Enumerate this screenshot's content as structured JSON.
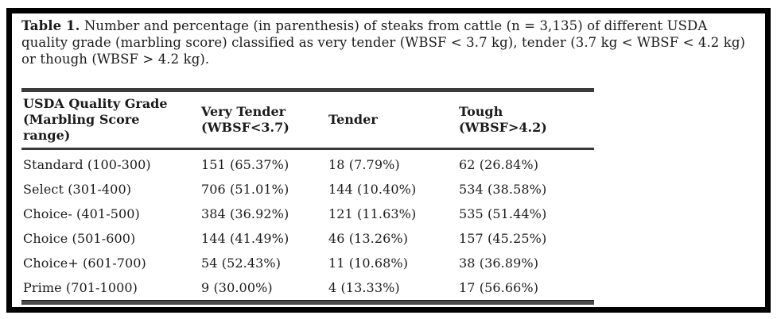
{
  "caption": {
    "label": "Table 1.",
    "line1_rest": "Number and percentage (in parenthesis) of steaks from cattle (n = 3,135) of different USDA",
    "line2": "quality grade (marbling score) classified as very tender (WBSF < 3.7 kg), tender (3.7 kg < WBSF < 4.2 kg)",
    "line3": "or though (WBSF > 4.2 kg)."
  },
  "table": {
    "columns": [
      {
        "lines": [
          "USDA Quality Grade",
          "(Marbling Score",
          "range)"
        ]
      },
      {
        "lines": [
          "Very Tender",
          "(WBSF<3.7)"
        ]
      },
      {
        "lines": [
          "Tender"
        ]
      },
      {
        "lines": [
          "Tough",
          "(WBSF>4.2)"
        ]
      }
    ],
    "rows": [
      {
        "grade": "Standard (100-300)",
        "very_tender": "151 (65.37%)",
        "tender": "18 (7.79%)",
        "tough": "62 (26.84%)"
      },
      {
        "grade": "Select (301-400)",
        "very_tender": "706 (51.01%)",
        "tender": "144 (10.40%)",
        "tough": "534 (38.58%)"
      },
      {
        "grade": "Choice- (401-500)",
        "very_tender": "384 (36.92%)",
        "tender": "121 (11.63%)",
        "tough": "535 (51.44%)"
      },
      {
        "grade": "Choice (501-600)",
        "very_tender": "144 (41.49%)",
        "tender": "46 (13.26%)",
        "tough": "157 (45.25%)"
      },
      {
        "grade": "Choice+ (601-700)",
        "very_tender": "54 (52.43%)",
        "tender": "11 (10.68%)",
        "tough": "38 (36.89%)"
      },
      {
        "grade": "Prime (701-1000)",
        "very_tender": "9 (30.00%)",
        "tender": "4 (13.33%)",
        "tough": "17 (56.66%)"
      }
    ]
  },
  "chart_data": {
    "type": "table",
    "title": "Table 1. Number and percentage (in parenthesis) of steaks from cattle (n = 3,135) of different USDA quality grade (marbling score) classified as very tender (WBSF < 3.7 kg), tender (3.7 kg < WBSF < 4.2 kg) or though (WBSF > 4.2 kg).",
    "columns": [
      "USDA Quality Grade (Marbling Score range)",
      "Very Tender (WBSF<3.7)",
      "Tender",
      "Tough (WBSF>4.2)"
    ],
    "rows": [
      [
        "Standard (100-300)",
        "151 (65.37%)",
        "18 (7.79%)",
        "62 (26.84%)"
      ],
      [
        "Select (301-400)",
        "706 (51.01%)",
        "144 (10.40%)",
        "534 (38.58%)"
      ],
      [
        "Choice- (401-500)",
        "384 (36.92%)",
        "121 (11.63%)",
        "535 (51.44%)"
      ],
      [
        "Choice (501-600)",
        "144 (41.49%)",
        "46 (13.26%)",
        "157 (45.25%)"
      ],
      [
        "Choice+ (601-700)",
        "54 (52.43%)",
        "11 (10.68%)",
        "38 (36.89%)"
      ],
      [
        "Prime (701-1000)",
        "9 (30.00%)",
        "4 (13.33%)",
        "17 (56.66%)"
      ]
    ],
    "colors": {
      "text": "#1b1b1b",
      "rule": "#3a3a3a",
      "frame": "#000000",
      "background": "#ffffff"
    }
  }
}
